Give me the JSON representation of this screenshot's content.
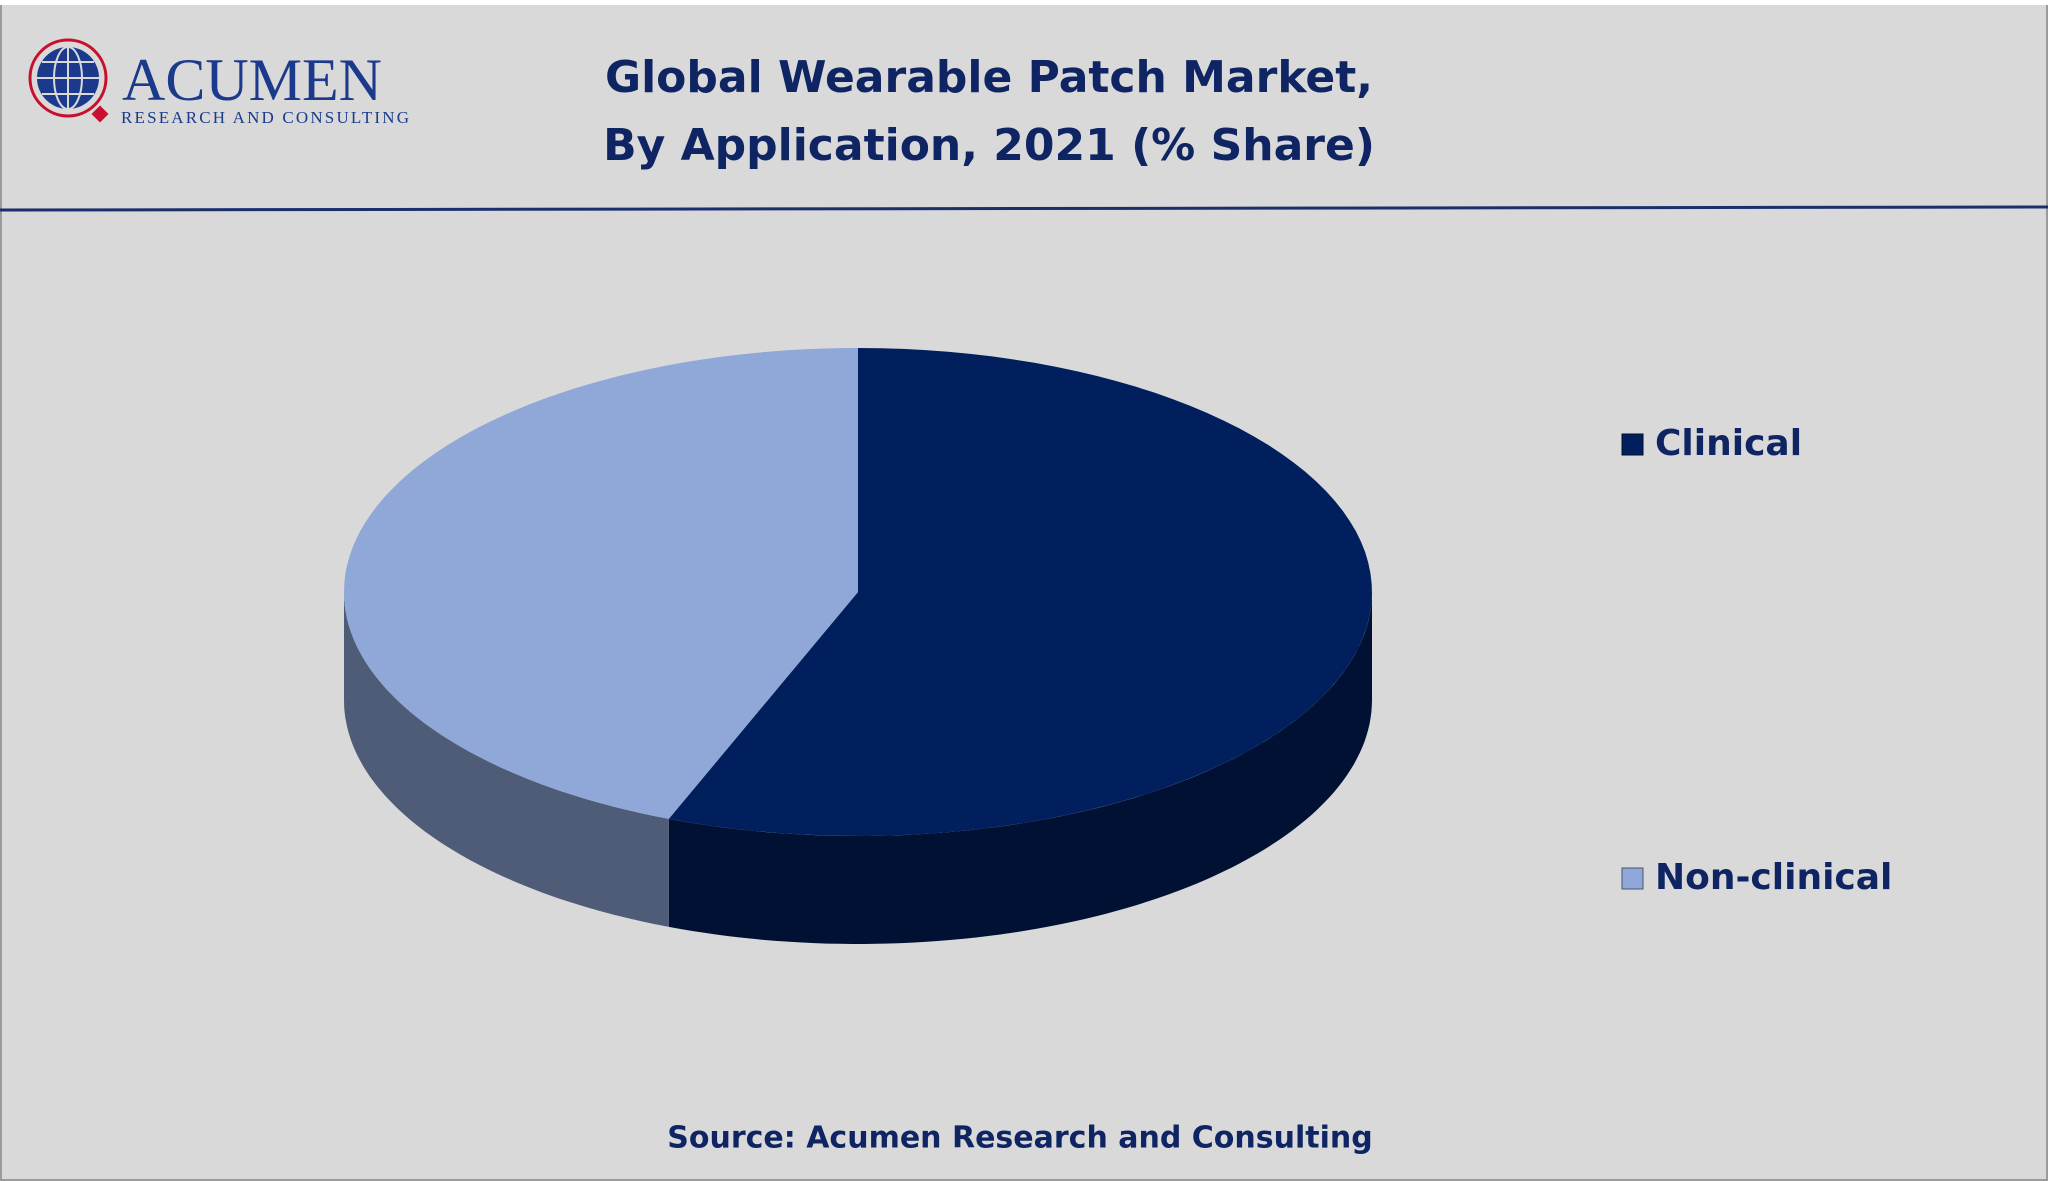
{
  "logo": {
    "name": "ACUMEN",
    "tagline": "RESEARCH AND CONSULTING"
  },
  "chart_data": {
    "type": "pie",
    "title": [
      "Global Wearable Patch Market,",
      "By Application, 2021 (% Share)"
    ],
    "categories": [
      "Clinical",
      "Non-clinical"
    ],
    "values": [
      56,
      44
    ],
    "colors": [
      "#001f5c",
      "#8fa8d8"
    ],
    "legend": "right",
    "source": "Source: Acumen Research and Consulting"
  }
}
